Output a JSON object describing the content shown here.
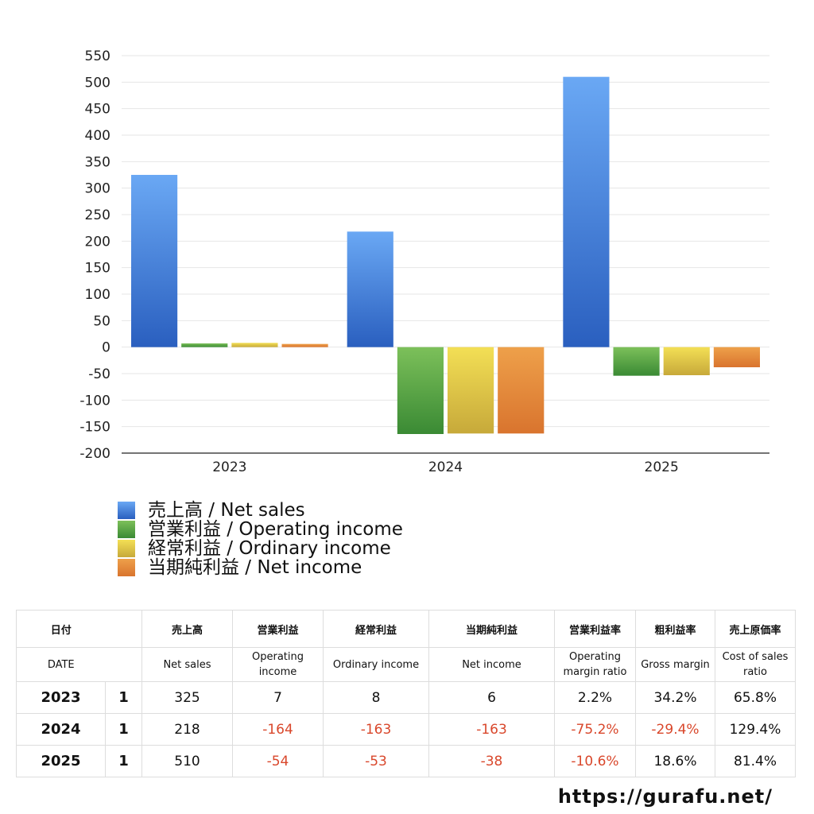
{
  "chart_data": {
    "type": "bar",
    "categories": [
      "2023",
      "2024",
      "2025"
    ],
    "series": [
      {
        "name": "売上高 / Net sales",
        "values": [
          325,
          218,
          510
        ],
        "color_top": "#6aa8f4",
        "color_bottom": "#2a5fbf"
      },
      {
        "name": "営業利益 / Operating income",
        "values": [
          7,
          -164,
          -54
        ],
        "color_top": "#7cc05a",
        "color_bottom": "#3a8a34"
      },
      {
        "name": "経常利益 / Ordinary income",
        "values": [
          8,
          -163,
          -53
        ],
        "color_top": "#f3df55",
        "color_bottom": "#c7a93a"
      },
      {
        "name": "当期純利益 / Net income",
        "values": [
          6,
          -163,
          -38
        ],
        "color_top": "#eea04a",
        "color_bottom": "#d9742e"
      }
    ],
    "ylim": [
      -200,
      550
    ],
    "yticks": [
      -200,
      -150,
      -100,
      -50,
      0,
      50,
      100,
      150,
      200,
      250,
      300,
      350,
      400,
      450,
      500,
      550
    ],
    "grid": true,
    "legend_position": "bottom-left"
  },
  "table": {
    "headers_jp": [
      "日付",
      "売上高",
      "営業利益",
      "経常利益",
      "当期純利益",
      "営業利益率",
      "粗利益率",
      "売上原価率"
    ],
    "headers_en": [
      "DATE",
      "Net sales",
      "Operating income",
      "Ordinary income",
      "Net income",
      "Operating margin ratio",
      "Gross margin",
      "Cost of sales ratio"
    ],
    "rows": [
      {
        "year": "2023",
        "q": "1",
        "net_sales": "325",
        "operating_income": "7",
        "ordinary_income": "8",
        "net_income": "6",
        "op_margin": "2.2%",
        "gross_margin": "34.2%",
        "cost_ratio": "65.8%"
      },
      {
        "year": "2024",
        "q": "1",
        "net_sales": "218",
        "operating_income": "-164",
        "ordinary_income": "-163",
        "net_income": "-163",
        "op_margin": "-75.2%",
        "gross_margin": "-29.4%",
        "cost_ratio": "129.4%"
      },
      {
        "year": "2025",
        "q": "1",
        "net_sales": "510",
        "operating_income": "-54",
        "ordinary_income": "-53",
        "net_income": "-38",
        "op_margin": "-10.6%",
        "gross_margin": "18.6%",
        "cost_ratio": "81.4%"
      }
    ]
  },
  "footer": {
    "url": "https://gurafu.net/"
  },
  "colors": {
    "negative": "#d9472b",
    "grid": "#e6e6e6",
    "axis": "#222222"
  }
}
